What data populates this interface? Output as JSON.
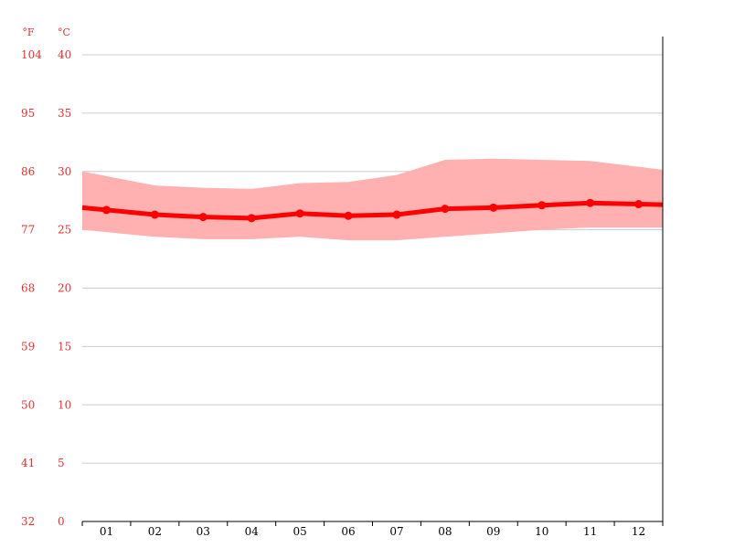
{
  "chart_data": {
    "type": "line",
    "title": "",
    "xlabel": "",
    "ylabel": "",
    "units": {
      "fahrenheit": "°F",
      "celsius": "°C"
    },
    "categories": [
      "01",
      "02",
      "03",
      "04",
      "05",
      "06",
      "07",
      "08",
      "09",
      "10",
      "11",
      "12"
    ],
    "celsius_ticks": [
      "0",
      "5",
      "10",
      "15",
      "20",
      "25",
      "30",
      "35",
      "40"
    ],
    "fahrenheit_ticks": [
      "32",
      "41",
      "50",
      "59",
      "68",
      "77",
      "86",
      "95",
      "104"
    ],
    "ylim": [
      0,
      40
    ],
    "grid": true,
    "series": [
      {
        "role": "mean",
        "values": [
          26.7,
          26.3,
          26.1,
          26.0,
          26.4,
          26.2,
          26.3,
          26.8,
          26.9,
          27.1,
          27.3,
          27.2
        ]
      },
      {
        "role": "max",
        "values": [
          29.6,
          28.8,
          28.6,
          28.5,
          29.0,
          29.1,
          29.7,
          31.0,
          31.1,
          31.0,
          30.9,
          30.4
        ]
      },
      {
        "role": "min",
        "values": [
          24.8,
          24.4,
          24.2,
          24.2,
          24.4,
          24.1,
          24.1,
          24.4,
          24.7,
          25.0,
          25.2,
          25.2
        ]
      }
    ],
    "colors": {
      "mean_line": "#ff0000",
      "range_fill": "#ffb0b0",
      "grid": "#cccccc",
      "tick_text": "#e03030",
      "axis": "#000000"
    }
  }
}
